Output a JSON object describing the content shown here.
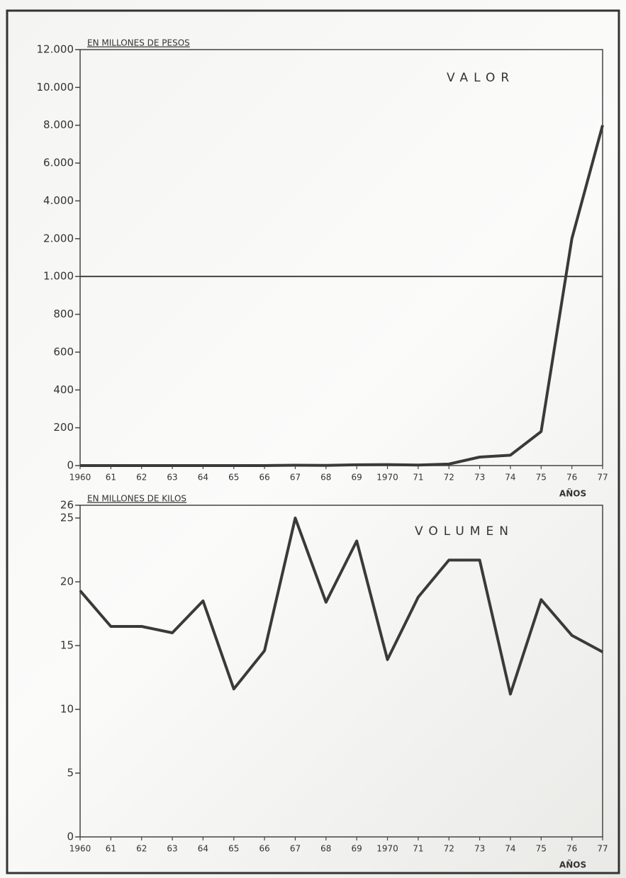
{
  "chart_data": [
    {
      "type": "line",
      "title": "VALOR",
      "annotation": "EN MILLONES DE PESOS",
      "x_label": "AÑOS",
      "categories": [
        "1960",
        "61",
        "62",
        "63",
        "64",
        "65",
        "66",
        "67",
        "68",
        "69",
        "1970",
        "71",
        "72",
        "73",
        "74",
        "75",
        "76",
        "77"
      ],
      "values": [
        0,
        0,
        0,
        0,
        0,
        0,
        0,
        2,
        1,
        4,
        5,
        3,
        8,
        45,
        55,
        180,
        2000,
        8000
      ],
      "color": "#3a3a3a",
      "yscale": "tick-spaced",
      "ylim": [
        0,
        12000
      ],
      "yticks": [
        0,
        200,
        400,
        600,
        800,
        {
          "value": 1000,
          "label": "1.000"
        },
        {
          "value": 2000,
          "label": "2.000"
        },
        {
          "value": 4000,
          "label": "4.000"
        },
        {
          "value": 6000,
          "label": "6.000"
        },
        {
          "value": 8000,
          "label": "8.000"
        },
        {
          "value": 10000,
          "label": "10.000"
        },
        {
          "value": 12000,
          "label": "12.000"
        }
      ],
      "reference_line": 1000
    },
    {
      "type": "line",
      "title": "VOLUMEN",
      "annotation": "EN MILLONES DE KILOS",
      "x_label": "AÑOS",
      "categories": [
        "1960",
        "61",
        "62",
        "63",
        "64",
        "65",
        "66",
        "67",
        "68",
        "69",
        "1970",
        "71",
        "72",
        "73",
        "74",
        "75",
        "76",
        "77"
      ],
      "values": [
        19.3,
        16.5,
        16.5,
        16,
        18.5,
        11.6,
        14.6,
        25,
        18.4,
        23.2,
        13.9,
        18.8,
        21.7,
        21.7,
        11.2,
        18.6,
        15.8,
        14.5
      ],
      "color": "#3a3a3a",
      "yscale": "linear",
      "ylim": [
        0,
        26
      ],
      "yticks": [
        0,
        5,
        10,
        15,
        20,
        25,
        26
      ]
    }
  ]
}
